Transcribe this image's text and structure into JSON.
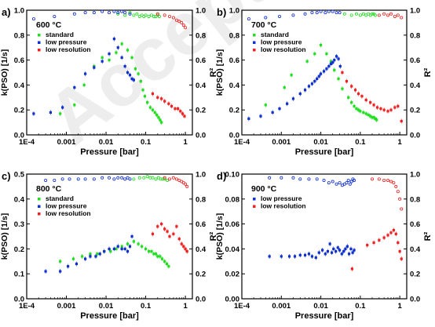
{
  "watermark": "Accepted Article",
  "chart_data": [
    {
      "panel_label": "a)",
      "type": "scatter",
      "annotation": "600 °C",
      "xlabel": "Pressure [bar]",
      "ylabel": "k(PSO) [1/s]",
      "y2label": "R²",
      "x_scale": "log",
      "xlim": [
        0.0001,
        1.5
      ],
      "x_ticks": [
        "1E-4",
        "0.001",
        "0.01",
        "0.1",
        "1"
      ],
      "ylim": [
        0.0,
        1.0
      ],
      "y_ticks": [
        "0.0",
        "0.2",
        "0.4",
        "0.6",
        "0.8",
        "1.0"
      ],
      "y2lim": [
        0.0,
        1.0
      ],
      "y2_ticks": [
        "0.0",
        "0.2",
        "0.4",
        "0.6",
        "0.8",
        "1.0"
      ],
      "legend_position": "top-left",
      "series": [
        {
          "name": "standard",
          "color": "#22dd22",
          "marker": "square",
          "x": [
            0.0007,
            0.0016,
            0.0028,
            0.005,
            0.008,
            0.012,
            0.018,
            0.025,
            0.035,
            0.045,
            0.055,
            0.065,
            0.075,
            0.085,
            0.095,
            0.11,
            0.13,
            0.15,
            0.17,
            0.19,
            0.21,
            0.23,
            0.25
          ],
          "y": [
            0.17,
            0.24,
            0.4,
            0.55,
            0.62,
            0.6,
            0.66,
            0.73,
            0.68,
            0.62,
            0.53,
            0.49,
            0.43,
            0.36,
            0.31,
            0.26,
            0.22,
            0.2,
            0.18,
            0.16,
            0.14,
            0.12,
            0.1
          ]
        },
        {
          "name": "low pressure",
          "color": "#1030cc",
          "marker": "square",
          "x": [
            0.00015,
            0.0004,
            0.0008,
            0.0016,
            0.003,
            0.005,
            0.008,
            0.012,
            0.016,
            0.02,
            0.025,
            0.03,
            0.035,
            0.04,
            0.045,
            0.05
          ],
          "y": [
            0.17,
            0.18,
            0.22,
            0.38,
            0.49,
            0.54,
            0.59,
            0.65,
            0.77,
            0.7,
            0.62,
            0.55,
            0.5,
            0.48,
            0.45,
            0.44
          ]
        },
        {
          "name": "low resolution",
          "color": "#ee2222",
          "marker": "square",
          "x": [
            0.15,
            0.2,
            0.25,
            0.3,
            0.38,
            0.45,
            0.55,
            0.65,
            0.75,
            0.85,
            0.95
          ],
          "y": [
            0.33,
            0.3,
            0.29,
            0.27,
            0.25,
            0.23,
            0.21,
            0.21,
            0.19,
            0.17,
            0.15
          ]
        },
        {
          "name": "",
          "axis": "right",
          "color": "#22dd22",
          "marker": "open-circle",
          "x": [
            0.02,
            0.03,
            0.04,
            0.05,
            0.06,
            0.07,
            0.08,
            0.09,
            0.1,
            0.12,
            0.14,
            0.16,
            0.18,
            0.2,
            0.22
          ],
          "y": [
            0.97,
            0.96,
            0.98,
            0.96,
            0.97,
            0.95,
            0.96,
            0.95,
            0.96,
            0.95,
            0.96,
            0.95,
            0.95,
            0.96,
            0.95
          ]
        },
        {
          "name": "",
          "axis": "right",
          "color": "#1030cc",
          "marker": "open-circle",
          "x": [
            0.00015,
            0.0005,
            0.0016,
            0.003,
            0.005,
            0.008,
            0.012,
            0.016,
            0.02,
            0.025,
            0.03,
            0.04
          ],
          "y": [
            0.93,
            0.95,
            0.97,
            0.98,
            0.98,
            0.99,
            0.98,
            0.99,
            0.98,
            0.99,
            0.98,
            0.97
          ]
        },
        {
          "name": "",
          "axis": "right",
          "color": "#ee2222",
          "marker": "open-circle",
          "x": [
            0.2,
            0.3,
            0.4,
            0.5,
            0.6,
            0.7,
            0.8,
            0.9,
            1.0
          ],
          "y": [
            0.97,
            0.96,
            0.95,
            0.94,
            0.92,
            0.91,
            0.9,
            0.88,
            0.86
          ]
        }
      ]
    },
    {
      "panel_label": "b)",
      "type": "scatter",
      "annotation": "700 °C",
      "xlabel": "Pressure [bar]",
      "ylabel": "k(PSO) [1/s]",
      "y2label": "R²",
      "x_scale": "log",
      "xlim": [
        0.0001,
        1.5
      ],
      "x_ticks": [
        "1E-4",
        "0.001",
        "0.01",
        "0.1",
        "1"
      ],
      "ylim": [
        0.0,
        1.0
      ],
      "y_ticks": [
        "0.0",
        "0.2",
        "0.4",
        "0.6",
        "0.8",
        "1.0"
      ],
      "y2lim": [
        0.0,
        1.0
      ],
      "y2_ticks": [
        "0.0",
        "0.2",
        "0.4",
        "0.6",
        "0.8",
        "1.0"
      ],
      "legend_position": "top-left",
      "series": [
        {
          "name": "standard",
          "color": "#22dd22",
          "marker": "square",
          "x": [
            0.0004,
            0.0012,
            0.0018,
            0.0045,
            0.007,
            0.01,
            0.014,
            0.018,
            0.022,
            0.028,
            0.035,
            0.05,
            0.06,
            0.07,
            0.08,
            0.09,
            0.1,
            0.12,
            0.14,
            0.16,
            0.18,
            0.2,
            0.22,
            0.24,
            0.26
          ],
          "y": [
            0.24,
            0.38,
            0.48,
            0.59,
            0.65,
            0.72,
            0.65,
            0.59,
            0.52,
            0.45,
            0.37,
            0.3,
            0.26,
            0.23,
            0.21,
            0.2,
            0.19,
            0.18,
            0.17,
            0.16,
            0.15,
            0.14,
            0.14,
            0.13,
            0.12
          ]
        },
        {
          "name": "low pressure",
          "color": "#1030cc",
          "marker": "square",
          "x": [
            0.00015,
            0.0003,
            0.0006,
            0.0009,
            0.0014,
            0.002,
            0.003,
            0.004,
            0.005,
            0.006,
            0.007,
            0.008,
            0.009,
            0.01,
            0.012,
            0.014,
            0.016,
            0.018,
            0.02,
            0.022,
            0.025,
            0.028,
            0.031
          ],
          "y": [
            0.13,
            0.15,
            0.18,
            0.21,
            0.25,
            0.29,
            0.33,
            0.36,
            0.39,
            0.41,
            0.43,
            0.45,
            0.47,
            0.49,
            0.51,
            0.53,
            0.55,
            0.57,
            0.58,
            0.6,
            0.63,
            0.61,
            0.55
          ]
        },
        {
          "name": "low resolution",
          "color": "#ee2222",
          "marker": "square",
          "x": [
            0.035,
            0.045,
            0.06,
            0.075,
            0.09,
            0.11,
            0.14,
            0.18,
            0.22,
            0.27,
            0.33,
            0.4,
            0.5,
            0.6,
            0.75,
            0.9,
            1.1
          ],
          "y": [
            0.5,
            0.43,
            0.39,
            0.36,
            0.33,
            0.31,
            0.28,
            0.26,
            0.24,
            0.22,
            0.21,
            0.2,
            0.19,
            0.2,
            0.22,
            0.23,
            0.11
          ]
        },
        {
          "name": "",
          "axis": "right",
          "color": "#22dd22",
          "marker": "open-circle",
          "x": [
            0.04,
            0.06,
            0.08,
            0.1,
            0.12,
            0.14,
            0.16,
            0.18,
            0.2,
            0.22,
            0.24
          ],
          "y": [
            0.97,
            0.96,
            0.97,
            0.96,
            0.97,
            0.96,
            0.97,
            0.96,
            0.97,
            0.97,
            0.96
          ]
        },
        {
          "name": "",
          "axis": "right",
          "color": "#1030cc",
          "marker": "open-circle",
          "x": [
            0.00015,
            0.0004,
            0.0009,
            0.002,
            0.004,
            0.006,
            0.008,
            0.01,
            0.013,
            0.016,
            0.02,
            0.025,
            0.03
          ],
          "y": [
            0.93,
            0.94,
            0.95,
            0.96,
            0.97,
            0.98,
            0.98,
            0.99,
            0.98,
            0.99,
            0.99,
            0.98,
            0.98
          ]
        },
        {
          "name": "",
          "axis": "right",
          "color": "#ee2222",
          "marker": "open-circle",
          "x": [
            0.3,
            0.4,
            0.5,
            0.6,
            0.75,
            0.9,
            1.1
          ],
          "y": [
            0.96,
            0.97,
            0.96,
            0.97,
            0.95,
            0.96,
            0.94
          ]
        }
      ]
    },
    {
      "panel_label": "c)",
      "type": "scatter",
      "annotation": "800 °C",
      "xlabel": "Pressure [bar]",
      "ylabel": "k(PSO) [1/s]",
      "y2label": "R²",
      "x_scale": "log",
      "xlim": [
        0.0001,
        1.5
      ],
      "x_ticks": [
        "1E-4",
        "0.001",
        "0.01",
        "0.1",
        "1"
      ],
      "ylim": [
        0.0,
        0.5
      ],
      "y_ticks": [
        "0.0",
        "0.1",
        "0.2",
        "0.3",
        "0.4",
        "0.5"
      ],
      "y2lim": [
        0.0,
        1.0
      ],
      "y2_ticks": [
        "0.0",
        "0.2",
        "0.4",
        "0.6",
        "0.8",
        "1.0"
      ],
      "legend_position": "top-left",
      "series": [
        {
          "name": "standard",
          "color": "#22dd22",
          "marker": "square",
          "x": [
            0.0007,
            0.0015,
            0.0025,
            0.004,
            0.006,
            0.009,
            0.013,
            0.018,
            0.025,
            0.035,
            0.05,
            0.065,
            0.08,
            0.1,
            0.12,
            0.14,
            0.16,
            0.18,
            0.2,
            0.23,
            0.26,
            0.3,
            0.34,
            0.38
          ],
          "y": [
            0.15,
            0.16,
            0.17,
            0.18,
            0.18,
            0.19,
            0.19,
            0.2,
            0.21,
            0.22,
            0.23,
            0.22,
            0.21,
            0.2,
            0.19,
            0.19,
            0.18,
            0.18,
            0.17,
            0.17,
            0.16,
            0.15,
            0.14,
            0.13
          ]
        },
        {
          "name": "low pressure",
          "color": "#1030cc",
          "marker": "square",
          "x": [
            0.0003,
            0.0007,
            0.0011,
            0.0018,
            0.003,
            0.004,
            0.0055,
            0.007,
            0.009,
            0.012,
            0.016,
            0.02,
            0.025,
            0.03,
            0.035,
            0.04,
            0.045
          ],
          "y": [
            0.11,
            0.11,
            0.13,
            0.14,
            0.16,
            0.17,
            0.17,
            0.18,
            0.19,
            0.2,
            0.2,
            0.21,
            0.2,
            0.2,
            0.19,
            0.21,
            0.25
          ]
        },
        {
          "name": "low resolution",
          "color": "#ee2222",
          "marker": "square",
          "x": [
            0.15,
            0.2,
            0.25,
            0.3,
            0.35,
            0.4,
            0.5,
            0.6,
            0.7,
            0.8,
            0.9,
            1.0,
            1.1
          ],
          "y": [
            0.26,
            0.29,
            0.3,
            0.28,
            0.27,
            0.25,
            0.26,
            0.29,
            0.24,
            0.22,
            0.21,
            0.2,
            0.19
          ]
        },
        {
          "name": "",
          "axis": "right",
          "color": "#22dd22",
          "marker": "open-circle",
          "x": [
            0.05,
            0.07,
            0.09,
            0.11,
            0.13,
            0.15,
            0.18,
            0.21,
            0.24,
            0.27,
            0.3,
            0.35
          ],
          "y": [
            0.96,
            0.97,
            0.97,
            0.98,
            0.97,
            0.97,
            0.96,
            0.97,
            0.96,
            0.96,
            0.96,
            0.95
          ]
        },
        {
          "name": "",
          "axis": "right",
          "color": "#1030cc",
          "marker": "open-circle",
          "x": [
            0.0003,
            0.0005,
            0.0008,
            0.0012,
            0.002,
            0.003,
            0.005,
            0.008,
            0.012,
            0.016,
            0.02,
            0.025,
            0.03,
            0.035,
            0.04
          ],
          "y": [
            0.95,
            0.95,
            0.96,
            0.96,
            0.96,
            0.96,
            0.96,
            0.97,
            0.97,
            0.96,
            0.97,
            0.97,
            0.96,
            0.97,
            0.96
          ]
        },
        {
          "name": "",
          "axis": "right",
          "color": "#ee2222",
          "marker": "open-circle",
          "x": [
            0.3,
            0.4,
            0.5,
            0.6,
            0.7,
            0.8,
            0.9,
            1.0,
            1.1
          ],
          "y": [
            0.97,
            0.96,
            0.97,
            0.96,
            0.95,
            0.94,
            0.93,
            0.92,
            0.9
          ]
        }
      ]
    },
    {
      "panel_label": "d)",
      "type": "scatter",
      "annotation": "900 °C",
      "xlabel": "Pressure [bar]",
      "ylabel": "k(PSO) [1/s]",
      "y2label": "R²",
      "x_scale": "log",
      "xlim": [
        0.0001,
        1.5
      ],
      "x_ticks": [
        "1E-4",
        "0.001",
        "0.01",
        "0.1",
        "1"
      ],
      "ylim": [
        0.0,
        0.1
      ],
      "y_ticks": [
        "0.00",
        "0.02",
        "0.04",
        "0.06",
        "0.08",
        "0.10"
      ],
      "y2lim": [
        0.0,
        1.0
      ],
      "y2_ticks": [
        "0.0",
        "0.2",
        "0.4",
        "0.6",
        "0.8",
        "1.0"
      ],
      "legend_position": "top-left",
      "series": [
        {
          "name": "low pressure",
          "color": "#1030cc",
          "marker": "square",
          "x": [
            0.0005,
            0.001,
            0.0016,
            0.0022,
            0.003,
            0.004,
            0.005,
            0.006,
            0.0075,
            0.009,
            0.011,
            0.013,
            0.015,
            0.017,
            0.019,
            0.021,
            0.024,
            0.027,
            0.03,
            0.034,
            0.038,
            0.042,
            0.047,
            0.052,
            0.058,
            0.064,
            0.07
          ],
          "y": [
            0.034,
            0.034,
            0.034,
            0.034,
            0.035,
            0.035,
            0.036,
            0.034,
            0.033,
            0.037,
            0.039,
            0.036,
            0.038,
            0.044,
            0.037,
            0.04,
            0.038,
            0.041,
            0.039,
            0.036,
            0.038,
            0.04,
            0.042,
            0.036,
            0.04,
            0.037,
            0.039
          ]
        },
        {
          "name": "low resolution",
          "color": "#ee2222",
          "marker": "square",
          "x": [
            0.062,
            0.15,
            0.22,
            0.3,
            0.4,
            0.5,
            0.6,
            0.7,
            0.8,
            0.9,
            1.0,
            1.1
          ],
          "y": [
            0.024,
            0.043,
            0.045,
            0.047,
            0.049,
            0.051,
            0.053,
            0.055,
            0.052,
            0.045,
            0.038,
            0.032
          ]
        },
        {
          "name": "",
          "axis": "right",
          "color": "#1030cc",
          "marker": "open-circle",
          "x": [
            0.0005,
            0.001,
            0.002,
            0.003,
            0.005,
            0.008,
            0.012,
            0.016,
            0.02,
            0.025,
            0.03,
            0.035,
            0.04,
            0.045,
            0.05,
            0.055,
            0.06,
            0.065,
            0.07
          ],
          "y": [
            0.97,
            0.97,
            0.97,
            0.96,
            0.96,
            0.96,
            0.95,
            0.93,
            0.94,
            0.92,
            0.93,
            0.91,
            0.92,
            0.93,
            0.95,
            0.92,
            0.94,
            0.96,
            0.95
          ]
        },
        {
          "name": "",
          "axis": "right",
          "color": "#ee2222",
          "marker": "open-circle",
          "x": [
            0.2,
            0.3,
            0.4,
            0.5,
            0.6,
            0.7,
            0.8,
            0.9,
            1.0,
            1.1
          ],
          "y": [
            0.96,
            0.96,
            0.95,
            0.95,
            0.94,
            0.93,
            0.9,
            0.86,
            0.8,
            0.72
          ]
        }
      ]
    }
  ]
}
